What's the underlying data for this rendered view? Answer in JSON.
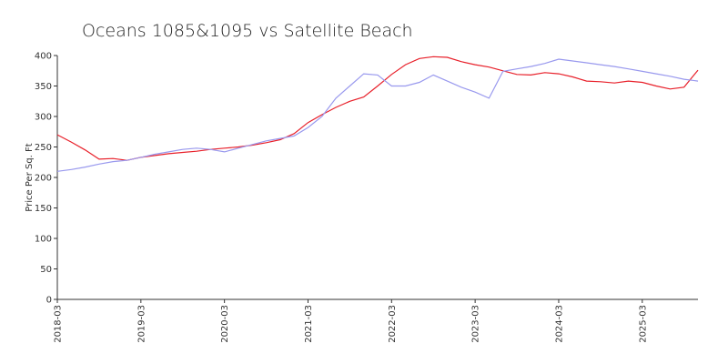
{
  "chart_data": {
    "type": "line",
    "title": "Oceans 1085&1095 vs Satellite Beach",
    "y_label": "Price Per Sq. Ft",
    "categories": [
      "2018-03",
      null,
      null,
      null,
      null,
      null,
      "2019-03",
      null,
      null,
      null,
      null,
      null,
      "2020-03",
      null,
      null,
      null,
      null,
      null,
      "2021-03",
      null,
      null,
      null,
      null,
      null,
      "2022-03",
      null,
      null,
      null,
      null,
      null,
      "2023-03",
      null,
      null,
      null,
      null,
      null,
      "2024-03",
      null,
      null,
      null,
      null,
      null,
      "2025-03",
      null,
      null,
      null,
      null
    ],
    "series": [
      {
        "color": "#e8202a",
        "values": [
          270,
          258,
          245,
          230,
          231,
          228,
          233,
          236,
          239,
          241,
          243,
          246,
          248,
          250,
          253,
          257,
          262,
          272,
          290,
          303,
          315,
          325,
          332,
          350,
          369,
          385,
          395,
          398,
          397,
          390,
          385,
          381,
          375,
          369,
          368,
          372,
          370,
          365,
          358,
          357,
          355,
          358,
          356,
          350,
          345,
          348,
          376
        ]
      },
      {
        "color": "#9999ee",
        "values": [
          210,
          213,
          217,
          222,
          226,
          228,
          233,
          238,
          242,
          246,
          248,
          246,
          242,
          248,
          254,
          260,
          264,
          268,
          282,
          300,
          330,
          350,
          370,
          368,
          350,
          350,
          356,
          368,
          358,
          348,
          340,
          330,
          374,
          378,
          382,
          387,
          394,
          391,
          388,
          385,
          382,
          378,
          374,
          370,
          366,
          361,
          358
        ]
      }
    ],
    "ylim": [
      0,
      400
    ],
    "yticks": [
      0,
      50,
      100,
      150,
      200,
      250,
      300,
      350,
      400
    ]
  }
}
